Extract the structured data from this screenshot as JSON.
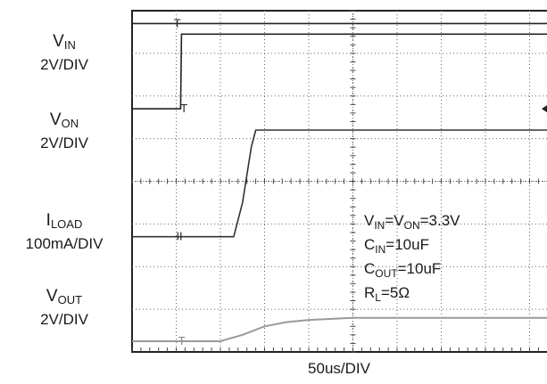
{
  "chart_data": {
    "type": "line",
    "xlabel": "50us/DIV",
    "grid": true,
    "divisions": {
      "x": 10,
      "y": 8
    },
    "series": [
      {
        "name": "VIN",
        "sym": "V",
        "sub": "IN",
        "scale": "2V/DIV",
        "marker": "T",
        "x_div": [
          0,
          10
        ],
        "y_div": [
          0.3,
          0.3
        ]
      },
      {
        "name": "VON",
        "sym": "V",
        "sub": "ON",
        "scale": "2V/DIV",
        "marker": "T",
        "x_div": [
          0,
          1.1,
          1.12,
          10
        ],
        "y_div": [
          2.3,
          2.3,
          0.55,
          0.55
        ]
      },
      {
        "name": "ILOAD",
        "sym": "I",
        "sub": "LOAD",
        "scale": "100mA/DIV",
        "marker": "II",
        "x_div": [
          0,
          2.3,
          2.5,
          2.7,
          2.8,
          4,
          10
        ],
        "y_div": [
          5.3,
          5.3,
          4.5,
          3.2,
          2.8,
          2.8,
          2.8
        ]
      },
      {
        "name": "VOUT",
        "sym": "V",
        "sub": "OUT",
        "scale": "2V/DIV",
        "marker": "T",
        "x_div": [
          0,
          2.0,
          2.5,
          3.0,
          3.5,
          4.0,
          5.0,
          6.0,
          8.0,
          10
        ],
        "y_div": [
          7.75,
          7.75,
          7.6,
          7.4,
          7.3,
          7.25,
          7.2,
          7.2,
          7.2,
          7.2
        ]
      }
    ],
    "annotations": [
      {
        "parts": [
          {
            "t": "V"
          },
          {
            "s": "IN"
          },
          {
            "t": "=V"
          },
          {
            "s": "ON"
          },
          {
            "t": "=3.3V"
          }
        ]
      },
      {
        "parts": [
          {
            "t": "C"
          },
          {
            "s": "IN"
          },
          {
            "t": "=10uF"
          }
        ]
      },
      {
        "parts": [
          {
            "t": "C"
          },
          {
            "s": "OUT"
          },
          {
            "t": "=10uF"
          }
        ]
      },
      {
        "parts": [
          {
            "t": "R"
          },
          {
            "s": "L"
          },
          {
            "t": "=5Ω"
          }
        ]
      }
    ]
  }
}
